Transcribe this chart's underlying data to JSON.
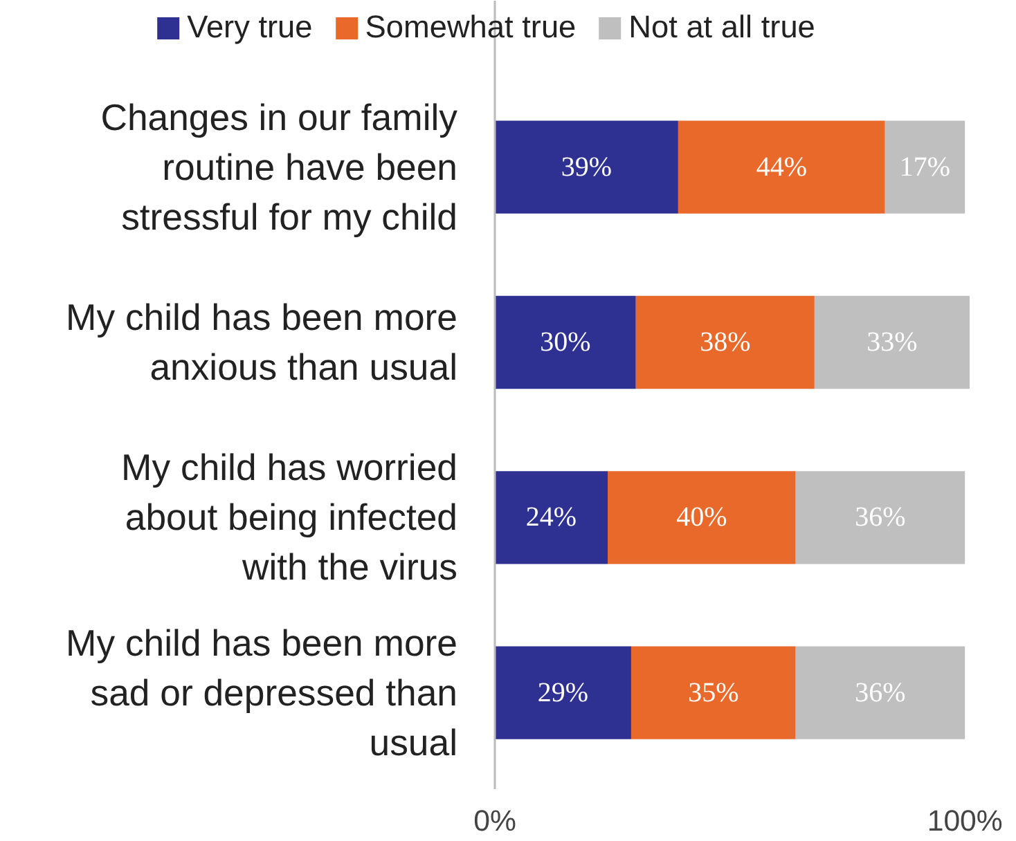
{
  "chart_data": {
    "type": "bar",
    "orientation": "horizontal",
    "stacked": true,
    "grid": false,
    "legend": "top",
    "categories": [
      "Changes in our family routine have been stressful for my child",
      "My child has been more anxious than usual",
      "My child has worried about being infected with the virus",
      "My child has been more sad or depressed than usual"
    ],
    "series": [
      {
        "name": "Very true",
        "color": "#2e3192",
        "values": [
          39,
          30,
          24,
          29
        ],
        "value_labels": [
          "39%",
          "30%",
          "24%",
          "29%"
        ]
      },
      {
        "name": "Somewhat true",
        "color": "#e8692a",
        "values": [
          44,
          38,
          40,
          35
        ],
        "value_labels": [
          "44%",
          "38%",
          "40%",
          "35%"
        ]
      },
      {
        "name": "Not at all true",
        "color": "#bfbfbf",
        "values": [
          17,
          33,
          36,
          36
        ],
        "value_labels": [
          "17%",
          "33%",
          "36%",
          "36%"
        ]
      }
    ],
    "xlim": [
      0,
      101
    ],
    "xticks": [
      {
        "value": 0,
        "label": "0%"
      },
      {
        "value": 100,
        "label": "100%"
      }
    ]
  }
}
